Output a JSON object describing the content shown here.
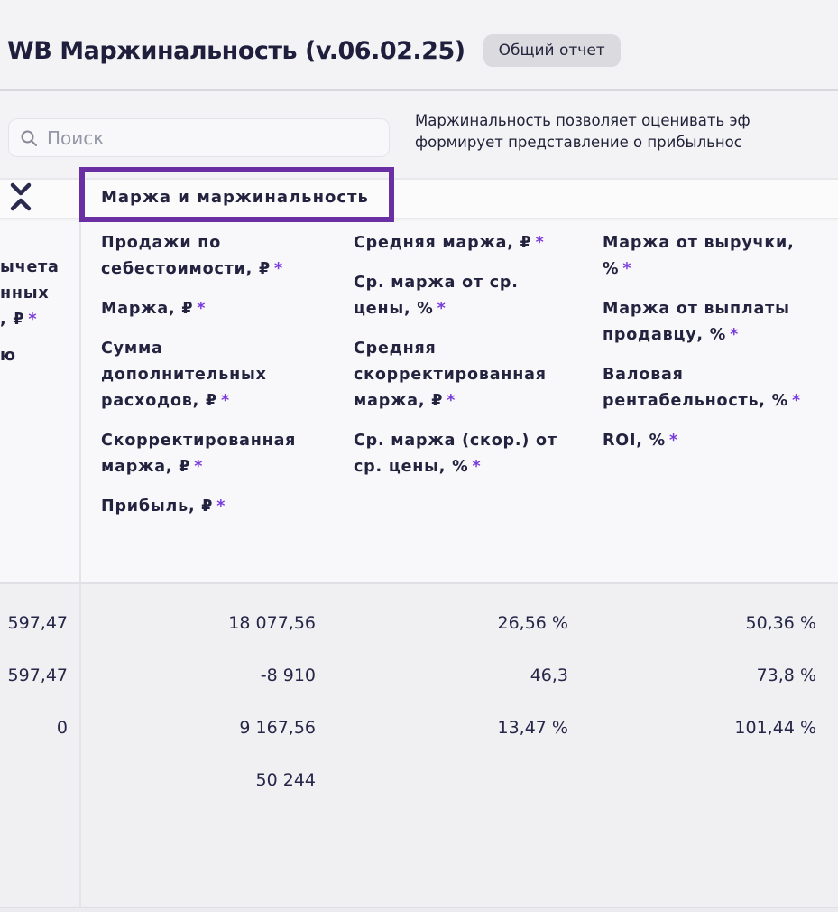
{
  "page": {
    "title": "WB Маржинальность (v.06.02.25)",
    "badge": "Общий отчет",
    "description_line1": "Маржинальность позволяет оценивать эф",
    "description_line2": "формирует представление о прибыльнос"
  },
  "search": {
    "placeholder": "Поиск"
  },
  "colors": {
    "accent_purple": "#6b2fa4",
    "asterisk_purple": "#7a3bdd",
    "text_navy": "#23233f",
    "badge_gray": "#dbdbdf"
  },
  "table": {
    "group_header": "Маржа и маржинальность",
    "asterisk_char": "*",
    "frozen_fragments": [
      {
        "text": "ычета",
        "asterisk": false,
        "gap": false
      },
      {
        "text": "нных",
        "asterisk": false,
        "gap": false
      },
      {
        "text": ", ₽",
        "asterisk": true,
        "gap": false
      },
      {
        "text": "ю",
        "asterisk": false,
        "gap": true
      }
    ],
    "header_columns": [
      {
        "items": [
          {
            "lines": [
              "Продажи по",
              "себестоимости, ₽"
            ],
            "asterisk": true
          },
          {
            "lines": [
              "Маржа, ₽"
            ],
            "asterisk": true
          },
          {
            "lines": [
              "Сумма",
              "дополнительных",
              "расходов, ₽"
            ],
            "asterisk": true
          },
          {
            "lines": [
              "Скорректированная",
              "маржа, ₽"
            ],
            "asterisk": true
          },
          {
            "lines": [
              "Прибыль, ₽"
            ],
            "asterisk": true
          }
        ]
      },
      {
        "items": [
          {
            "lines": [
              "Средняя маржа, ₽"
            ],
            "asterisk": true
          },
          {
            "lines": [
              "Ср. маржа от ср.",
              "цены, %"
            ],
            "asterisk": true
          },
          {
            "lines": [
              "Средняя",
              "скорректированная",
              "маржа, ₽"
            ],
            "asterisk": true
          },
          {
            "lines": [
              "Ср. маржа (скор.) от",
              "ср. цены, %"
            ],
            "asterisk": true
          }
        ]
      },
      {
        "items": [
          {
            "lines": [
              "Маржа от выручки,",
              "%"
            ],
            "asterisk": true
          },
          {
            "lines": [
              "Маржа от выплаты",
              "продавцу, %"
            ],
            "asterisk": true
          },
          {
            "lines": [
              "Валовая",
              "рентабельность, %"
            ],
            "asterisk": true
          },
          {
            "lines": [
              "ROI, %"
            ],
            "asterisk": true
          }
        ]
      }
    ],
    "rows": [
      [
        "597,47",
        "18 077,56",
        "26,56 %",
        "50,36 %"
      ],
      [
        "597,47",
        "-8 910",
        "46,3",
        "73,8 %"
      ],
      [
        "0",
        "9 167,56",
        "13,47 %",
        "101,44 %"
      ],
      [
        "",
        "50 244",
        "",
        ""
      ]
    ]
  }
}
